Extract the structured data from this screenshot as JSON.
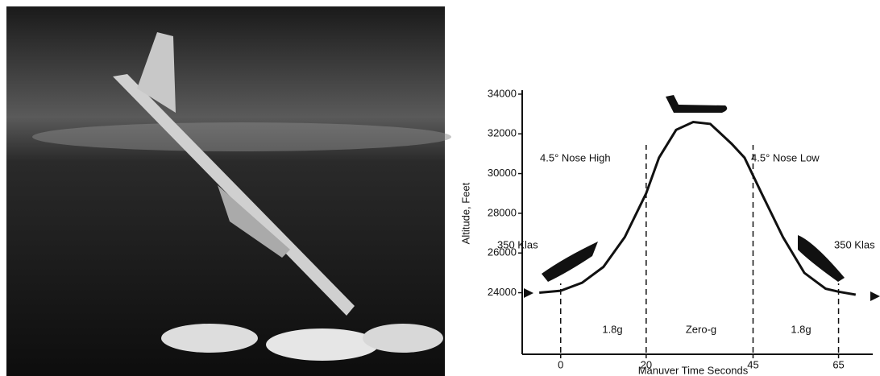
{
  "chart_data": {
    "type": "line",
    "y_label": "Altitude, Feet",
    "x_label": "Manuver Time Seconds",
    "x": [
      -5,
      0,
      5,
      10,
      15,
      20,
      23,
      27,
      31,
      35,
      40,
      43,
      47,
      52,
      57,
      62,
      65,
      69
    ],
    "series": [
      {
        "color": "#111111",
        "values": [
          24000,
          24100,
          24500,
          25300,
          26800,
          29000,
          30800,
          32200,
          32600,
          32500,
          31500,
          30800,
          29000,
          26800,
          25000,
          24200,
          24050,
          23900
        ]
      }
    ],
    "xlim": [
      -9,
      73
    ],
    "ylim": [
      20900,
      34200
    ],
    "xticks": [
      0,
      20,
      45,
      65
    ],
    "yticks": [
      24000,
      26000,
      28000,
      30000,
      32000,
      34000
    ],
    "annotations": [
      "4.5° Nose High",
      "4.5° Nose Low",
      "350 Klas",
      "350 Klas",
      "1.8g",
      "Zero-g",
      "1.8g"
    ]
  }
}
